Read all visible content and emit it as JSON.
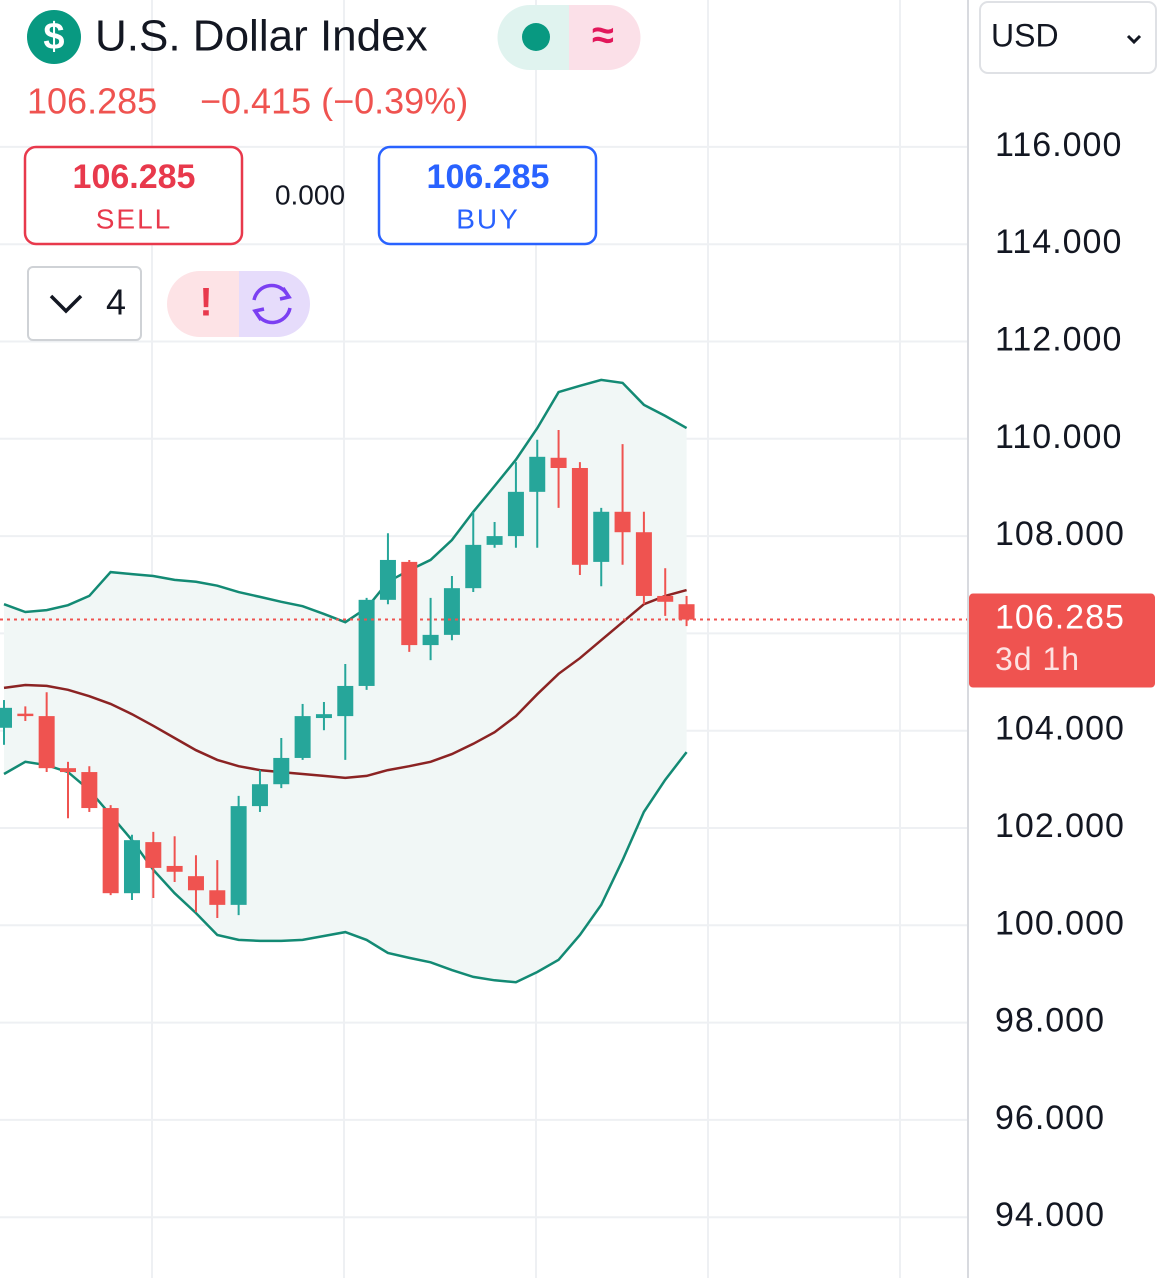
{
  "header": {
    "logo": "$",
    "title": "U.S. Dollar Index",
    "price": "106.285",
    "change": "−0.415 (−0.39%)"
  },
  "toggle": {
    "symbol": "≈"
  },
  "trade": {
    "sell": {
      "price": "106.285",
      "label": "SELL"
    },
    "spread": "0.000",
    "buy": {
      "price": "106.285",
      "label": "BUY"
    }
  },
  "controls": {
    "count": "4",
    "alert": "!"
  },
  "currency": "USD",
  "chart_data": {
    "type": "candlestick",
    "up_color": "#26a69a",
    "down_color": "#ef5350",
    "candles": {
      "open": [
        104.06,
        104.35,
        104.3,
        103.23,
        103.15,
        102.41,
        100.66,
        101.71,
        101.22,
        101.01,
        100.72,
        100.42,
        102.45,
        102.9,
        103.44,
        104.26,
        104.3,
        104.92,
        106.69,
        107.47,
        105.76,
        105.97,
        106.93,
        107.82,
        108.0,
        108.91,
        109.61,
        109.4,
        107.47,
        108.5,
        108.08,
        106.77,
        106.6
      ],
      "high": [
        104.63,
        104.5,
        104.79,
        103.36,
        103.27,
        102.47,
        101.86,
        101.92,
        101.83,
        101.44,
        101.34,
        102.66,
        103.19,
        103.85,
        104.55,
        104.59,
        105.37,
        106.73,
        108.06,
        107.51,
        106.73,
        107.18,
        108.5,
        108.29,
        109.52,
        109.98,
        110.18,
        109.52,
        108.58,
        109.89,
        108.5,
        107.34,
        106.77
      ],
      "low": [
        103.71,
        104.2,
        103.15,
        102.2,
        102.33,
        100.62,
        100.52,
        100.56,
        100.89,
        100.27,
        100.15,
        100.21,
        102.33,
        102.82,
        103.4,
        104.01,
        103.4,
        104.84,
        106.6,
        105.62,
        105.45,
        105.86,
        106.85,
        107.76,
        107.76,
        107.76,
        108.58,
        107.2,
        106.97,
        107.41,
        106.6,
        106.36,
        106.15
      ],
      "close": [
        104.47,
        104.3,
        103.23,
        103.15,
        102.41,
        100.66,
        101.75,
        101.18,
        101.1,
        100.72,
        100.42,
        102.45,
        102.9,
        103.44,
        104.3,
        104.34,
        104.92,
        106.69,
        107.51,
        105.76,
        105.97,
        106.93,
        107.82,
        108.0,
        108.91,
        109.63,
        109.4,
        107.41,
        108.5,
        108.08,
        106.77,
        106.65,
        106.285
      ]
    },
    "bands": {
      "band_color": "#138a74",
      "middle_color": "#8b2323",
      "fill_color": "#f1f7f6",
      "upper": [
        106.6,
        106.44,
        106.48,
        106.58,
        106.77,
        107.26,
        107.22,
        107.18,
        107.1,
        107.06,
        106.98,
        106.85,
        106.75,
        106.65,
        106.56,
        106.4,
        106.23,
        106.52,
        107.06,
        107.3,
        107.51,
        107.92,
        108.5,
        109.03,
        109.57,
        110.22,
        110.96,
        111.09,
        111.21,
        111.15,
        110.7,
        110.47,
        110.22
      ],
      "middle": [
        104.88,
        104.94,
        104.92,
        104.84,
        104.71,
        104.55,
        104.34,
        104.1,
        103.85,
        103.6,
        103.4,
        103.27,
        103.19,
        103.15,
        103.11,
        103.07,
        103.03,
        103.07,
        103.19,
        103.27,
        103.36,
        103.52,
        103.73,
        103.97,
        104.3,
        104.75,
        105.17,
        105.49,
        105.86,
        106.23,
        106.6,
        106.77,
        106.89
      ],
      "lower": [
        103.11,
        103.36,
        103.29,
        103.15,
        102.78,
        102.27,
        101.75,
        101.14,
        100.66,
        100.25,
        99.8,
        99.7,
        99.68,
        99.68,
        99.7,
        99.78,
        99.86,
        99.7,
        99.43,
        99.33,
        99.24,
        99.08,
        98.94,
        98.87,
        98.83,
        99.04,
        99.29,
        99.8,
        100.42,
        101.34,
        102.33,
        102.99,
        103.56
      ]
    },
    "last_price": 106.285,
    "last_color": "#ef5350",
    "countdown": "3d 1h",
    "ylim": [
      92.75,
      119.02
    ],
    "yticks": [
      {
        "value": 94,
        "label": "94.000"
      },
      {
        "value": 96,
        "label": "96.000"
      },
      {
        "value": 98,
        "label": "98.000"
      },
      {
        "value": 100,
        "label": "100.000"
      },
      {
        "value": 102,
        "label": "102.000"
      },
      {
        "value": 104,
        "label": "104.000"
      },
      {
        "value": 106,
        "label": "106.000"
      },
      {
        "value": 108,
        "label": "108.000"
      },
      {
        "value": 110,
        "label": "110.000"
      },
      {
        "value": 112,
        "label": "112.000"
      },
      {
        "value": 114,
        "label": "114.000"
      },
      {
        "value": 116,
        "label": "116.000"
      }
    ],
    "grid": true
  }
}
